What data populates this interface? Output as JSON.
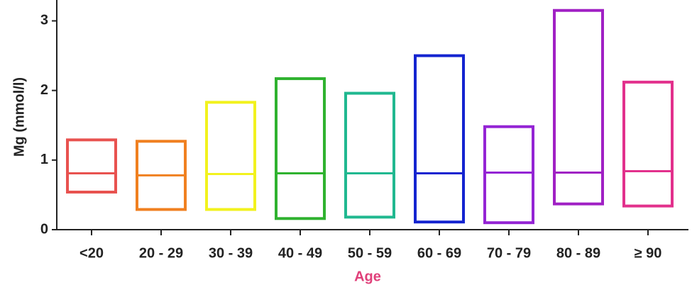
{
  "chart_data": {
    "type": "floating-bar",
    "x_label": "Age",
    "y_label": "Mg (mmol/l)",
    "categories": [
      "<20",
      "20 - 29",
      "30 - 39",
      "40 - 49",
      "50 - 59",
      "60 - 69",
      "70 - 79",
      "80 - 89",
      "≥ 90"
    ],
    "high": [
      1.29,
      1.27,
      1.83,
      2.17,
      1.96,
      2.5,
      1.48,
      3.15,
      2.12
    ],
    "low": [
      0.54,
      0.29,
      0.29,
      0.16,
      0.18,
      0.11,
      0.1,
      0.37,
      0.34
    ],
    "median": [
      0.81,
      0.78,
      0.8,
      0.81,
      0.81,
      0.81,
      0.82,
      0.82,
      0.84
    ],
    "colors": [
      "#e8524f",
      "#f08020",
      "#f2f21e",
      "#2fb22f",
      "#20b890",
      "#1424d0",
      "#9424d4",
      "#a020c4",
      "#e2308c"
    ],
    "ylim": [
      0,
      3.3
    ],
    "yticks": [
      0,
      1,
      2,
      3
    ],
    "grid": false
  }
}
